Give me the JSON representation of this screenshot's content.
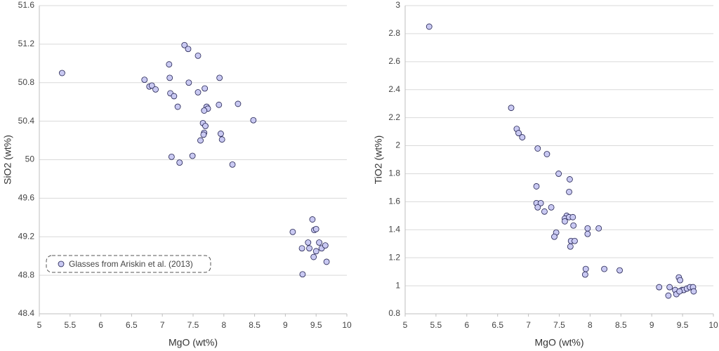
{
  "chart_data": [
    {
      "type": "scatter",
      "x_label": "MgO (wt%)",
      "y_label": "SiO2 (wt%)",
      "xlim": [
        5,
        10
      ],
      "xticks": [
        5,
        5.5,
        6,
        6.5,
        7,
        7.5,
        8,
        8.5,
        9,
        9.5,
        10
      ],
      "ylim": [
        48.4,
        51.6
      ],
      "yticks": [
        48.4,
        48.8,
        49.2,
        49.6,
        50,
        50.4,
        50.8,
        51.2,
        51.6
      ],
      "grid": true,
      "legend": "lower left",
      "x": [
        5.37,
        6.71,
        6.79,
        6.83,
        6.89,
        7.11,
        7.12,
        7.13,
        7.19,
        7.25,
        7.15,
        7.28,
        7.36,
        7.42,
        7.43,
        7.49,
        7.58,
        7.58,
        7.69,
        7.72,
        7.74,
        7.68,
        7.66,
        7.7,
        7.68,
        7.67,
        7.62,
        7.93,
        7.92,
        7.95,
        7.97,
        8.23,
        8.14,
        8.48,
        9.12,
        9.44,
        9.47,
        9.5,
        9.37,
        9.27,
        9.39,
        9.55,
        9.59,
        9.65,
        9.5,
        9.46,
        9.67,
        9.28
      ],
      "series": [
        {
          "name": "Glasses from Ariskin et al. (2013)",
          "color": "#c9c9f2",
          "values": [
            50.9,
            50.83,
            50.76,
            50.77,
            50.73,
            50.99,
            50.85,
            50.69,
            50.66,
            50.55,
            50.03,
            49.97,
            51.19,
            51.15,
            50.8,
            50.04,
            51.08,
            50.7,
            50.74,
            50.55,
            50.53,
            50.51,
            50.38,
            50.35,
            50.28,
            50.26,
            50.2,
            50.85,
            50.57,
            50.27,
            50.21,
            50.58,
            49.95,
            50.41,
            49.25,
            49.38,
            49.27,
            49.28,
            49.14,
            49.08,
            49.08,
            49.14,
            49.08,
            49.11,
            49.05,
            48.99,
            48.94,
            48.81
          ]
        }
      ]
    },
    {
      "type": "scatter",
      "x_label": "MgO (wt%)",
      "y_label": "TiO2 (wt%)",
      "xlim": [
        5,
        10
      ],
      "xticks": [
        5,
        5.5,
        6,
        6.5,
        7,
        7.5,
        8,
        8.5,
        9,
        9.5,
        10
      ],
      "ylim": [
        0.8,
        3
      ],
      "yticks": [
        0.8,
        1,
        1.2,
        1.4,
        1.6,
        1.8,
        2,
        2.2,
        2.4,
        2.6,
        2.8,
        3
      ],
      "grid": true,
      "x": [
        5.39,
        6.72,
        6.81,
        6.84,
        6.9,
        7.15,
        7.3,
        7.49,
        7.67,
        7.13,
        7.66,
        7.13,
        7.2,
        7.15,
        7.37,
        7.26,
        7.62,
        7.59,
        7.59,
        7.66,
        7.72,
        7.73,
        7.45,
        7.42,
        7.69,
        7.75,
        7.68,
        7.96,
        8.14,
        7.96,
        7.93,
        7.92,
        8.23,
        8.48,
        9.44,
        9.46,
        9.12,
        9.29,
        9.38,
        9.49,
        9.52,
        9.57,
        9.62,
        9.67,
        9.27,
        9.4,
        9.68,
        9.45
      ],
      "series": [
        {
          "color": "#c9c9f2",
          "values": [
            2.85,
            2.27,
            2.12,
            2.09,
            2.06,
            1.98,
            1.94,
            1.8,
            1.76,
            1.71,
            1.67,
            1.59,
            1.59,
            1.56,
            1.56,
            1.53,
            1.5,
            1.48,
            1.46,
            1.49,
            1.49,
            1.43,
            1.38,
            1.35,
            1.32,
            1.32,
            1.28,
            1.41,
            1.41,
            1.37,
            1.12,
            1.08,
            1.12,
            1.11,
            1.06,
            1.04,
            0.99,
            0.99,
            0.97,
            0.97,
            0.97,
            0.98,
            0.99,
            0.99,
            0.93,
            0.94,
            0.96,
            0.96
          ]
        }
      ]
    }
  ]
}
